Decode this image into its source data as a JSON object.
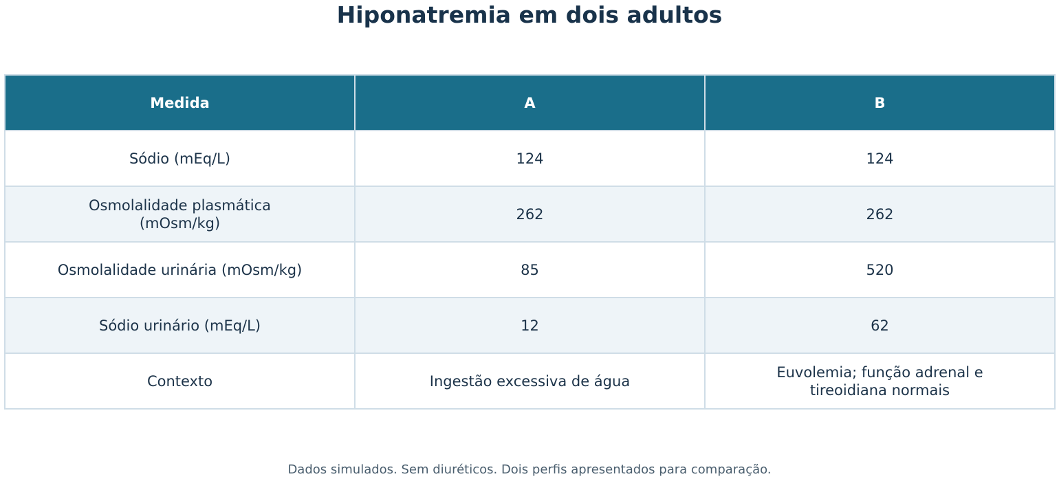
{
  "title": "Hiponatremia em dois adultos",
  "footnote": "Dados simulados. Sem diuréticos. Dois perfis apresentados para comparação.",
  "colors": {
    "header_bg": "#1a6e8a",
    "header_text": "#ffffff",
    "alt_row_bg": "#eef4f8",
    "border": "#cfdde7",
    "text": "#1c3349"
  },
  "chart_data": {
    "type": "table",
    "title": "Hiponatremia em dois adultos",
    "columns": [
      "Medida",
      "A",
      "B"
    ],
    "rows": [
      [
        "Sódio (mEq/L)",
        "124",
        "124"
      ],
      [
        "Osmolalidade plasmática (mOsm/kg)",
        "262",
        "262"
      ],
      [
        "Osmolalidade urinária (mOsm/kg)",
        "85",
        "520"
      ],
      [
        "Sódio urinário (mEq/L)",
        "12",
        "62"
      ],
      [
        "Contexto",
        "Ingestão excessiva de água",
        "Euvolemia; função adrenal e tireoidiana normais"
      ]
    ]
  }
}
